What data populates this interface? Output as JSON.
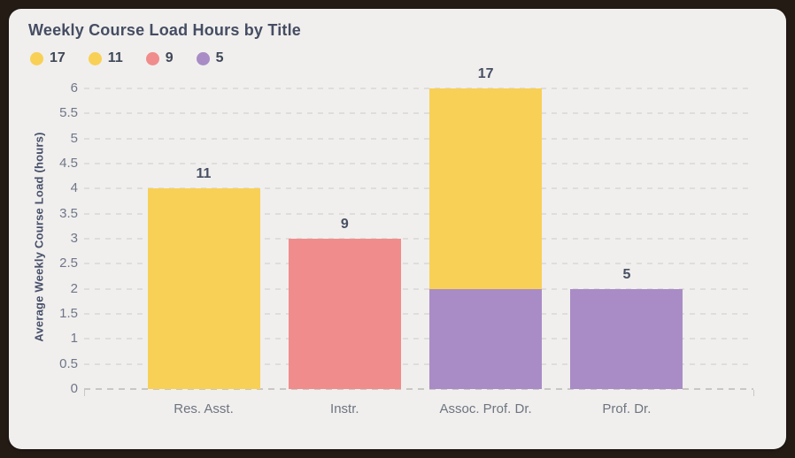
{
  "window": {
    "frame_color": "#241B15",
    "panel_color": "#F0EFED"
  },
  "chart_data": {
    "type": "bar",
    "stacked": true,
    "title": "Weekly Course Load Hours by Title",
    "xlabel": "",
    "ylabel": "Average Weekly Course Load (hours)",
    "ylim": [
      0,
      6
    ],
    "ytick_step": 0.5,
    "yticks": [
      "0",
      "0.5",
      "1",
      "1.5",
      "2",
      "2.5",
      "3",
      "3.5",
      "4",
      "4.5",
      "5",
      "5.5",
      "6"
    ],
    "grid": "horizontal-dashed",
    "legend_position": "top-left",
    "legend": [
      {
        "label": "17",
        "color": "#F9D056"
      },
      {
        "label": "11",
        "color": "#F9D056"
      },
      {
        "label": "9",
        "color": "#F08C8C"
      },
      {
        "label": "5",
        "color": "#A98CC5"
      }
    ],
    "categories": [
      "Res. Asst.",
      "Instr.",
      "Assoc. Prof. Dr.",
      "Prof. Dr."
    ],
    "bars": [
      {
        "category": "Res. Asst.",
        "total_label": "11",
        "total_height": 4,
        "segments": [
          {
            "value": 4,
            "color": "#F9D056"
          }
        ]
      },
      {
        "category": "Instr.",
        "total_label": "9",
        "total_height": 3,
        "segments": [
          {
            "value": 3,
            "color": "#F08C8C"
          }
        ]
      },
      {
        "category": "Assoc. Prof. Dr.",
        "total_label": "17",
        "total_height": 6,
        "segments": [
          {
            "value": 2,
            "color": "#A98CC5"
          },
          {
            "value": 4,
            "color": "#F9D056"
          }
        ]
      },
      {
        "category": "Prof. Dr.",
        "total_label": "5",
        "total_height": 2,
        "segments": [
          {
            "value": 2,
            "color": "#A98CC5"
          }
        ]
      }
    ],
    "colors": {
      "title_text": "#454D63",
      "axis_text": "#6F7689",
      "category_text": "#6E7480",
      "value_label_text": "#474F63",
      "gridline": "#DEDDDB",
      "baseline": "#C9C7C4"
    }
  }
}
